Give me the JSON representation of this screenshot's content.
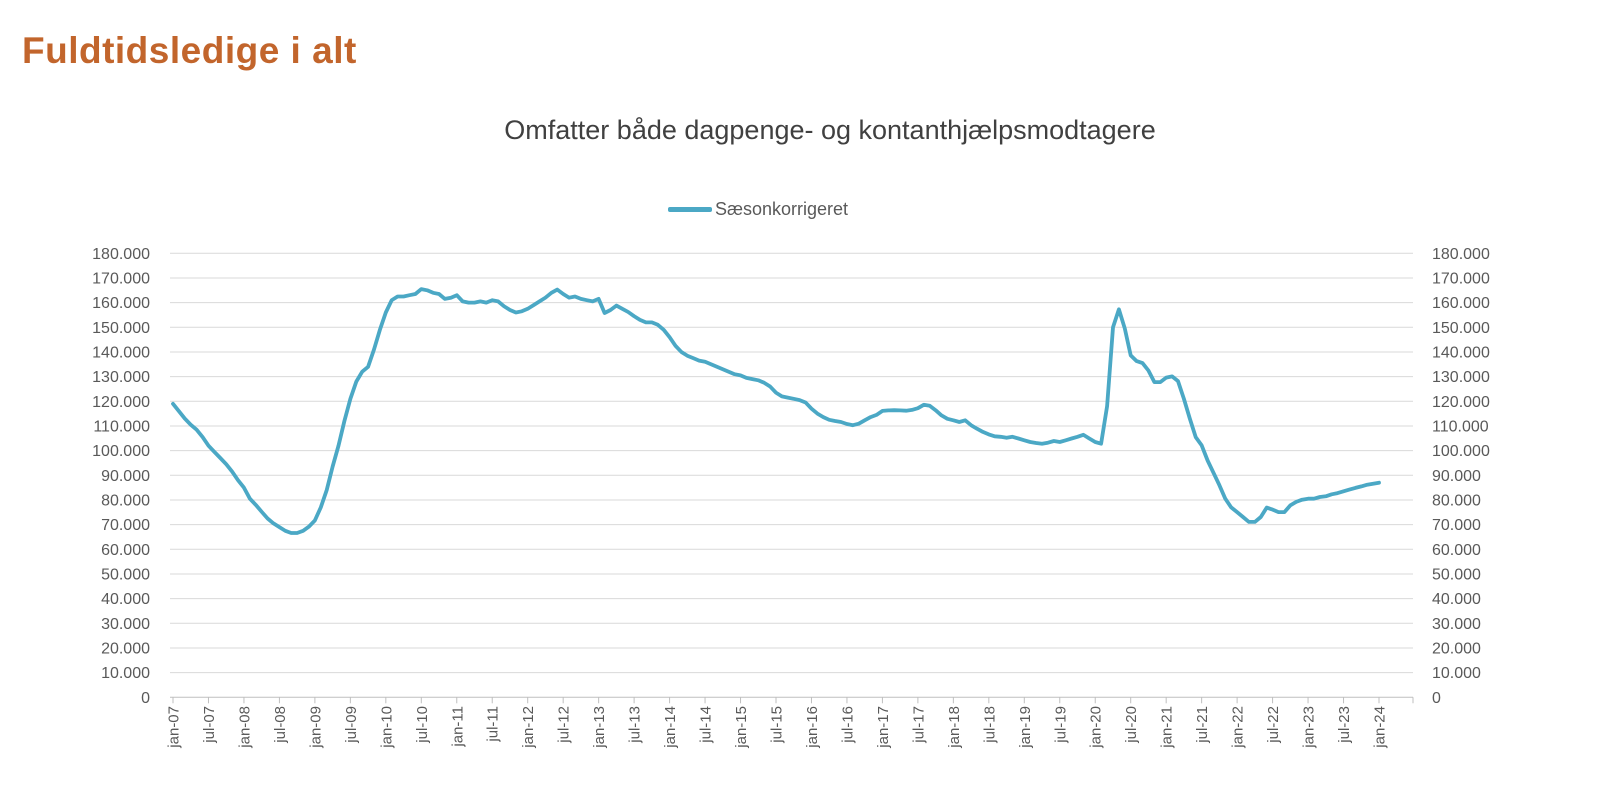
{
  "page_title": "Fuldtidsledige i alt",
  "colors": {
    "background": "#FFFFFF",
    "title": "#C2652C",
    "subtitle": "#404040",
    "axis_label": "#595959",
    "gridline": "#D9D9D9",
    "axis_line": "#BFBFBF",
    "series": "#4BA8C5"
  },
  "chart_data": {
    "type": "line",
    "title": "Omfatter både dagpenge- og kontanthjælpsmodtagere",
    "legend_position": "top-center",
    "grid": "horizontal-only",
    "ylim": [
      0,
      180000
    ],
    "y_tick_interval": 10000,
    "y_tick_labels": [
      "0",
      "10.000",
      "20.000",
      "30.000",
      "40.000",
      "50.000",
      "60.000",
      "70.000",
      "80.000",
      "90.000",
      "100.000",
      "110.000",
      "120.000",
      "130.000",
      "140.000",
      "150.000",
      "160.000",
      "170.000",
      "180.000"
    ],
    "y_axis_sides": "left-and-right",
    "x_tick_labels": [
      "jan-07",
      "jul-07",
      "jan-08",
      "jul-08",
      "jan-09",
      "jul-09",
      "jan-10",
      "jul-10",
      "jan-11",
      "jul-11",
      "jan-12",
      "jul-12",
      "jan-13",
      "jul-13",
      "jan-14",
      "jul-14",
      "jan-15",
      "jul-15",
      "jan-16",
      "jul-16",
      "jan-17",
      "jul-17",
      "jan-18",
      "jul-18",
      "jan-19",
      "jul-19",
      "jan-20",
      "jul-20",
      "jan-21",
      "jul-21",
      "jan-22",
      "jul-22",
      "jan-23",
      "jul-23",
      "jan-24"
    ],
    "x_label_rotation_degrees": -90,
    "x_frequency": "monthly",
    "legend": [
      {
        "name": "Sæsonkorrigeret",
        "color": "#4BA8C5"
      }
    ],
    "series": [
      {
        "name": "Sæsonkorrigeret",
        "color": "#4BA8C5",
        "start": "jan-07",
        "end": "jan-24",
        "values": [
          119000,
          116000,
          113000,
          110500,
          108500,
          105500,
          102000,
          99500,
          97000,
          94500,
          91500,
          88000,
          85000,
          80500,
          78000,
          75200,
          72500,
          70500,
          69000,
          67500,
          66600,
          66600,
          67500,
          69200,
          71700,
          77000,
          84000,
          93500,
          102000,
          112000,
          121000,
          128000,
          132000,
          134000,
          141000,
          149000,
          156000,
          161000,
          162500,
          162500,
          163000,
          163500,
          165500,
          165000,
          164000,
          163500,
          161500,
          162000,
          163000,
          160500,
          160000,
          160000,
          160500,
          160000,
          161000,
          160500,
          158500,
          157000,
          156000,
          156500,
          157500,
          159000,
          160500,
          162000,
          164000,
          165300,
          163500,
          162000,
          162500,
          161500,
          161000,
          160500,
          161500,
          155800,
          157000,
          158800,
          157500,
          156200,
          154500,
          153000,
          152000,
          152000,
          151000,
          149000,
          146000,
          142500,
          140000,
          138500,
          137500,
          136500,
          136000,
          135000,
          134000,
          133000,
          132000,
          131000,
          130500,
          129500,
          129000,
          128500,
          127500,
          126000,
          123500,
          122000,
          121500,
          121000,
          120500,
          119500,
          117000,
          115000,
          113600,
          112500,
          112000,
          111600,
          110800,
          110300,
          110900,
          112300,
          113600,
          114500,
          116100,
          116300,
          116400,
          116300,
          116200,
          116500,
          117200,
          118600,
          118200,
          116400,
          114300,
          112900,
          112300,
          111600,
          112300,
          110300,
          108900,
          107600,
          106600,
          105800,
          105600,
          105200,
          105600,
          104900,
          104200,
          103500,
          103100,
          102800,
          103200,
          103900,
          103500,
          104200,
          104900,
          105600,
          106400,
          104900,
          103500,
          102800,
          118000,
          150000,
          157300,
          149500,
          138600,
          136300,
          135500,
          132500,
          127800,
          127800,
          129600,
          130100,
          128200,
          121000,
          113000,
          105500,
          102200,
          96000,
          91000,
          86000,
          80500,
          77000,
          75100,
          73100,
          71100,
          71100,
          73100,
          76900,
          76100,
          75100,
          75100,
          77800,
          79200,
          80100,
          80500,
          80500,
          81200,
          81500,
          82300,
          82800,
          83500,
          84200,
          84900,
          85500,
          86200,
          86600,
          87000
        ]
      }
    ]
  }
}
